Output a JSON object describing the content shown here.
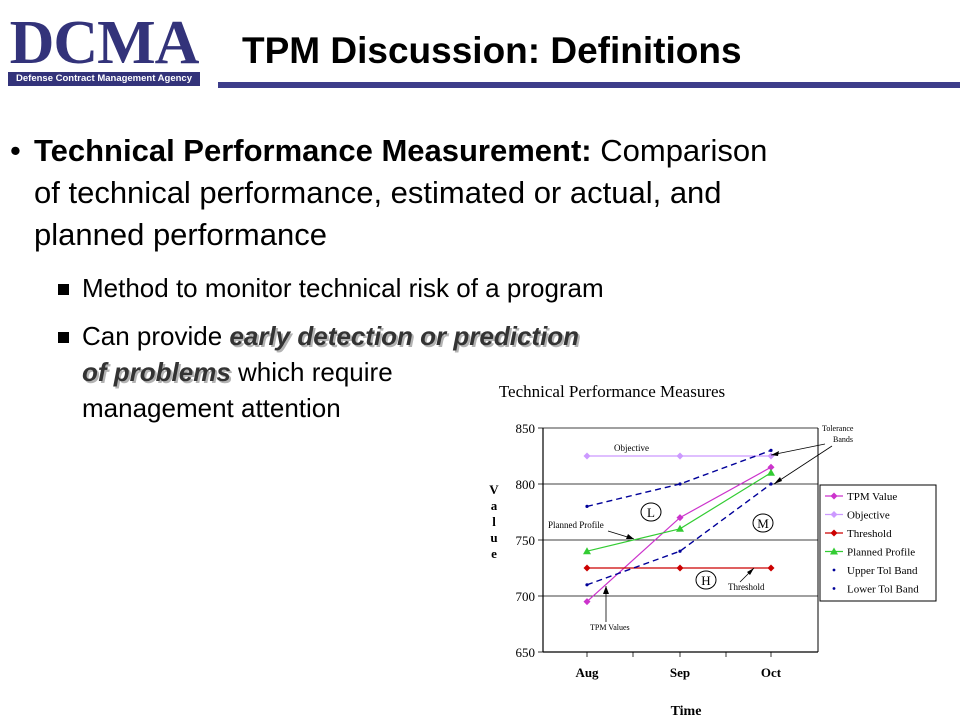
{
  "logo": {
    "title": "DCMA",
    "subtitle": "Defense Contract Management Agency"
  },
  "slide": {
    "title": "TPM Discussion:  Definitions",
    "bullet": {
      "marker": "•",
      "term": "Technical Performance Measurement:",
      "line1_rest": " Comparison",
      "line2": "of technical performance, estimated or actual, and",
      "line3": "planned performance"
    },
    "sub1": "Method to monitor technical risk of a program",
    "sub2": {
      "prefix": "Can provide ",
      "emphasis1": "early detection or prediction",
      "emphasis2": "of problems",
      "line2_rest": " which require",
      "line3": "management attention"
    }
  },
  "chart_data": {
    "type": "line",
    "title": "Technical Performance Measures",
    "xlabel": "Time",
    "ylabel": "Value",
    "categories": [
      "Aug",
      "Sep",
      "Oct"
    ],
    "ylim": [
      650,
      850
    ],
    "yticks": [
      "850",
      "800",
      "750",
      "700",
      "650"
    ],
    "grid": true,
    "legend_position": "right",
    "series": [
      {
        "name": "TPM Value",
        "color": "#cc33cc",
        "marker": "diamond",
        "values": [
          695,
          770,
          815
        ]
      },
      {
        "name": "Objective",
        "color": "#cc99ff",
        "marker": "diamond",
        "values": [
          825,
          825,
          825
        ]
      },
      {
        "name": "Threshold",
        "color": "#cc0000",
        "marker": "diamond",
        "values": [
          725,
          725,
          725
        ]
      },
      {
        "name": "Planned Profile",
        "color": "#33cc33",
        "marker": "triangle",
        "values": [
          740,
          760,
          810
        ]
      },
      {
        "name": "Upper Tol Band",
        "color": "#000099",
        "marker": "dot",
        "dashed": true,
        "values": [
          780,
          800,
          830
        ]
      },
      {
        "name": "Lower Tol Band",
        "color": "#000099",
        "marker": "dot",
        "dashed": true,
        "values": [
          710,
          740,
          800
        ]
      }
    ],
    "annotations": {
      "objective": "Objective",
      "tolerance_line1": "Tolerance",
      "tolerance_line2": "Bands",
      "planned_profile": "Planned Profile",
      "threshold": "Threshold",
      "tpm_values": "TPM Values",
      "risk_low": "L",
      "risk_medium": "M",
      "risk_high": "H"
    }
  }
}
